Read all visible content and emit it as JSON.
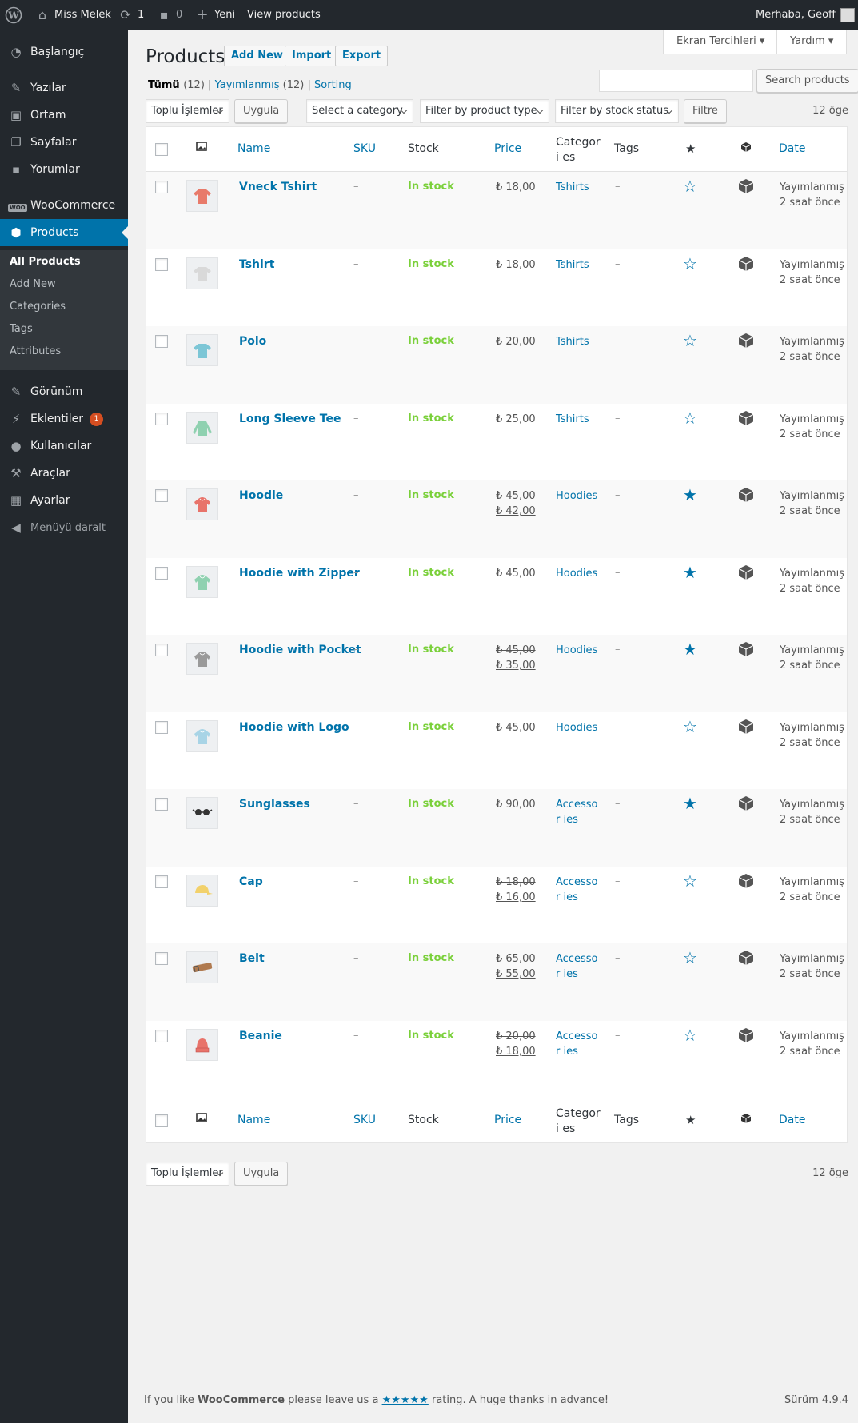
{
  "adminbar": {
    "wp_logo": "wordpress-icon",
    "site_name": "Miss Melek",
    "updates_count": "1",
    "comments_count": "0",
    "new_label": "Yeni",
    "view_products": "View products",
    "greeting": "Merhaba, Geoff"
  },
  "sidebar": {
    "items": [
      {
        "label": "Başlangıç",
        "icon": "dashboard-icon"
      },
      {
        "label": "Yazılar",
        "icon": "pin-icon"
      },
      {
        "label": "Ortam",
        "icon": "media-icon"
      },
      {
        "label": "Sayfalar",
        "icon": "pages-icon"
      },
      {
        "label": "Yorumlar",
        "icon": "comments-icon"
      },
      {
        "label": "WooCommerce",
        "icon": "woocommerce-icon"
      },
      {
        "label": "Products",
        "icon": "products-icon"
      },
      {
        "label": "Görünüm",
        "icon": "appearance-icon"
      },
      {
        "label": "Eklentiler",
        "icon": "plugins-icon",
        "badge": "1"
      },
      {
        "label": "Kullanıcılar",
        "icon": "users-icon"
      },
      {
        "label": "Araçlar",
        "icon": "tools-icon"
      },
      {
        "label": "Ayarlar",
        "icon": "settings-icon"
      },
      {
        "label": "Menüyü daralt",
        "icon": "collapse-icon"
      }
    ],
    "submenu": [
      "All Products",
      "Add New",
      "Categories",
      "Tags",
      "Attributes"
    ]
  },
  "screen_options": "Ekran Tercihleri",
  "help": "Yardım",
  "page_title": "Products",
  "title_buttons": {
    "add_new": "Add New",
    "import": "Import",
    "export": "Export"
  },
  "views": {
    "all": "Tümü",
    "all_count": "(12)",
    "published": "Yayımlanmış",
    "published_count": "(12)",
    "sorting": "Sorting",
    "sep": "|"
  },
  "search_button": "Search products",
  "filters": {
    "bulk_actions": "Toplu İşlemler",
    "apply": "Uygula",
    "category": "Select a category",
    "product_type": "Filter by product type",
    "stock_status": "Filter by stock status",
    "filter_button": "Filtre",
    "items_count": "12 öge"
  },
  "columns": {
    "image_icon": "image-icon",
    "name": "Name",
    "sku": "SKU",
    "stock": "Stock",
    "price": "Price",
    "categories": "Categori es",
    "tags": "Tags",
    "featured_icon": "star-icon",
    "type_icon": "box-icon",
    "date": "Date"
  },
  "products": [
    {
      "name": "Vneck Tshirt",
      "sku": "–",
      "stock": "In stock",
      "price": "₺ 18,00",
      "old_price": "",
      "category": "Tshirts",
      "tags": "–",
      "featured": false,
      "date1": "Yayımlanmış",
      "date2": "2 saat önce",
      "thumb": "tshirt-icon",
      "color": "#e87a6a"
    },
    {
      "name": "Tshirt",
      "sku": "–",
      "stock": "In stock",
      "price": "₺ 18,00",
      "old_price": "",
      "category": "Tshirts",
      "tags": "–",
      "featured": false,
      "date1": "Yayımlanmış",
      "date2": "2 saat önce",
      "thumb": "tshirt-icon",
      "color": "#d9d9d9"
    },
    {
      "name": "Polo",
      "sku": "–",
      "stock": "In stock",
      "price": "₺ 20,00",
      "old_price": "",
      "category": "Tshirts",
      "tags": "–",
      "featured": false,
      "date1": "Yayımlanmış",
      "date2": "2 saat önce",
      "thumb": "polo-icon",
      "color": "#7cc6d6"
    },
    {
      "name": "Long Sleeve Tee",
      "sku": "–",
      "stock": "In stock",
      "price": "₺ 25,00",
      "old_price": "",
      "category": "Tshirts",
      "tags": "–",
      "featured": false,
      "date1": "Yayımlanmış",
      "date2": "2 saat önce",
      "thumb": "longsleeve-icon",
      "color": "#8fd1b0"
    },
    {
      "name": "Hoodie",
      "sku": "–",
      "stock": "In stock",
      "price": "₺ 42,00",
      "old_price": "₺ 45,00",
      "category": "Hoodies",
      "tags": "–",
      "featured": true,
      "date1": "Yayımlanmış",
      "date2": "2 saat önce",
      "thumb": "hoodie-icon",
      "color": "#e8736a"
    },
    {
      "name": "Hoodie with Zipper",
      "sku": "–",
      "stock": "In stock",
      "price": "₺ 45,00",
      "old_price": "",
      "category": "Hoodies",
      "tags": "–",
      "featured": true,
      "date1": "Yayımlanmış",
      "date2": "2 saat önce",
      "thumb": "hoodie-icon",
      "color": "#8fd1b0"
    },
    {
      "name": "Hoodie with Pocket",
      "sku": "–",
      "stock": "In stock",
      "price": "₺ 35,00",
      "old_price": "₺ 45,00",
      "category": "Hoodies",
      "tags": "–",
      "featured": true,
      "date1": "Yayımlanmış",
      "date2": "2 saat önce",
      "thumb": "hoodie-icon",
      "color": "#9a9a9a"
    },
    {
      "name": "Hoodie with Logo",
      "sku": "–",
      "stock": "In stock",
      "price": "₺ 45,00",
      "old_price": "",
      "category": "Hoodies",
      "tags": "–",
      "featured": false,
      "date1": "Yayımlanmış",
      "date2": "2 saat önce",
      "thumb": "hoodie-icon",
      "color": "#a8d4e6"
    },
    {
      "name": "Sunglasses",
      "sku": "–",
      "stock": "In stock",
      "price": "₺ 90,00",
      "old_price": "",
      "category": "Accessor ies",
      "tags": "–",
      "featured": true,
      "date1": "Yayımlanmış",
      "date2": "2 saat önce",
      "thumb": "sunglasses-icon",
      "color": "#333333"
    },
    {
      "name": "Cap",
      "sku": "–",
      "stock": "In stock",
      "price": "₺ 16,00",
      "old_price": "₺ 18,00",
      "category": "Accessor ies",
      "tags": "–",
      "featured": false,
      "date1": "Yayımlanmış",
      "date2": "2 saat önce",
      "thumb": "cap-icon",
      "color": "#f2d16b"
    },
    {
      "name": "Belt",
      "sku": "–",
      "stock": "In stock",
      "price": "₺ 55,00",
      "old_price": "₺ 65,00",
      "category": "Accessor ies",
      "tags": "–",
      "featured": false,
      "date1": "Yayımlanmış",
      "date2": "2 saat önce",
      "thumb": "belt-icon",
      "color": "#b07a4f"
    },
    {
      "name": "Beanie",
      "sku": "–",
      "stock": "In stock",
      "price": "₺ 18,00",
      "old_price": "₺ 20,00",
      "category": "Accessor ies",
      "tags": "–",
      "featured": false,
      "date1": "Yayımlanmış",
      "date2": "2 saat önce",
      "thumb": "beanie-icon",
      "color": "#e8736a"
    }
  ],
  "footer": {
    "text_before": "If you like ",
    "brand": "WooCommerce",
    "text_middle": " please leave us a ",
    "stars": "★★★★★",
    "text_after": " rating. A huge thanks in advance!",
    "version": "Sürüm 4.9.4"
  },
  "colors": {
    "accent": "#0073aa",
    "sidebar": "#23282d",
    "instock": "#7ad03a",
    "badge": "#d54e21"
  }
}
